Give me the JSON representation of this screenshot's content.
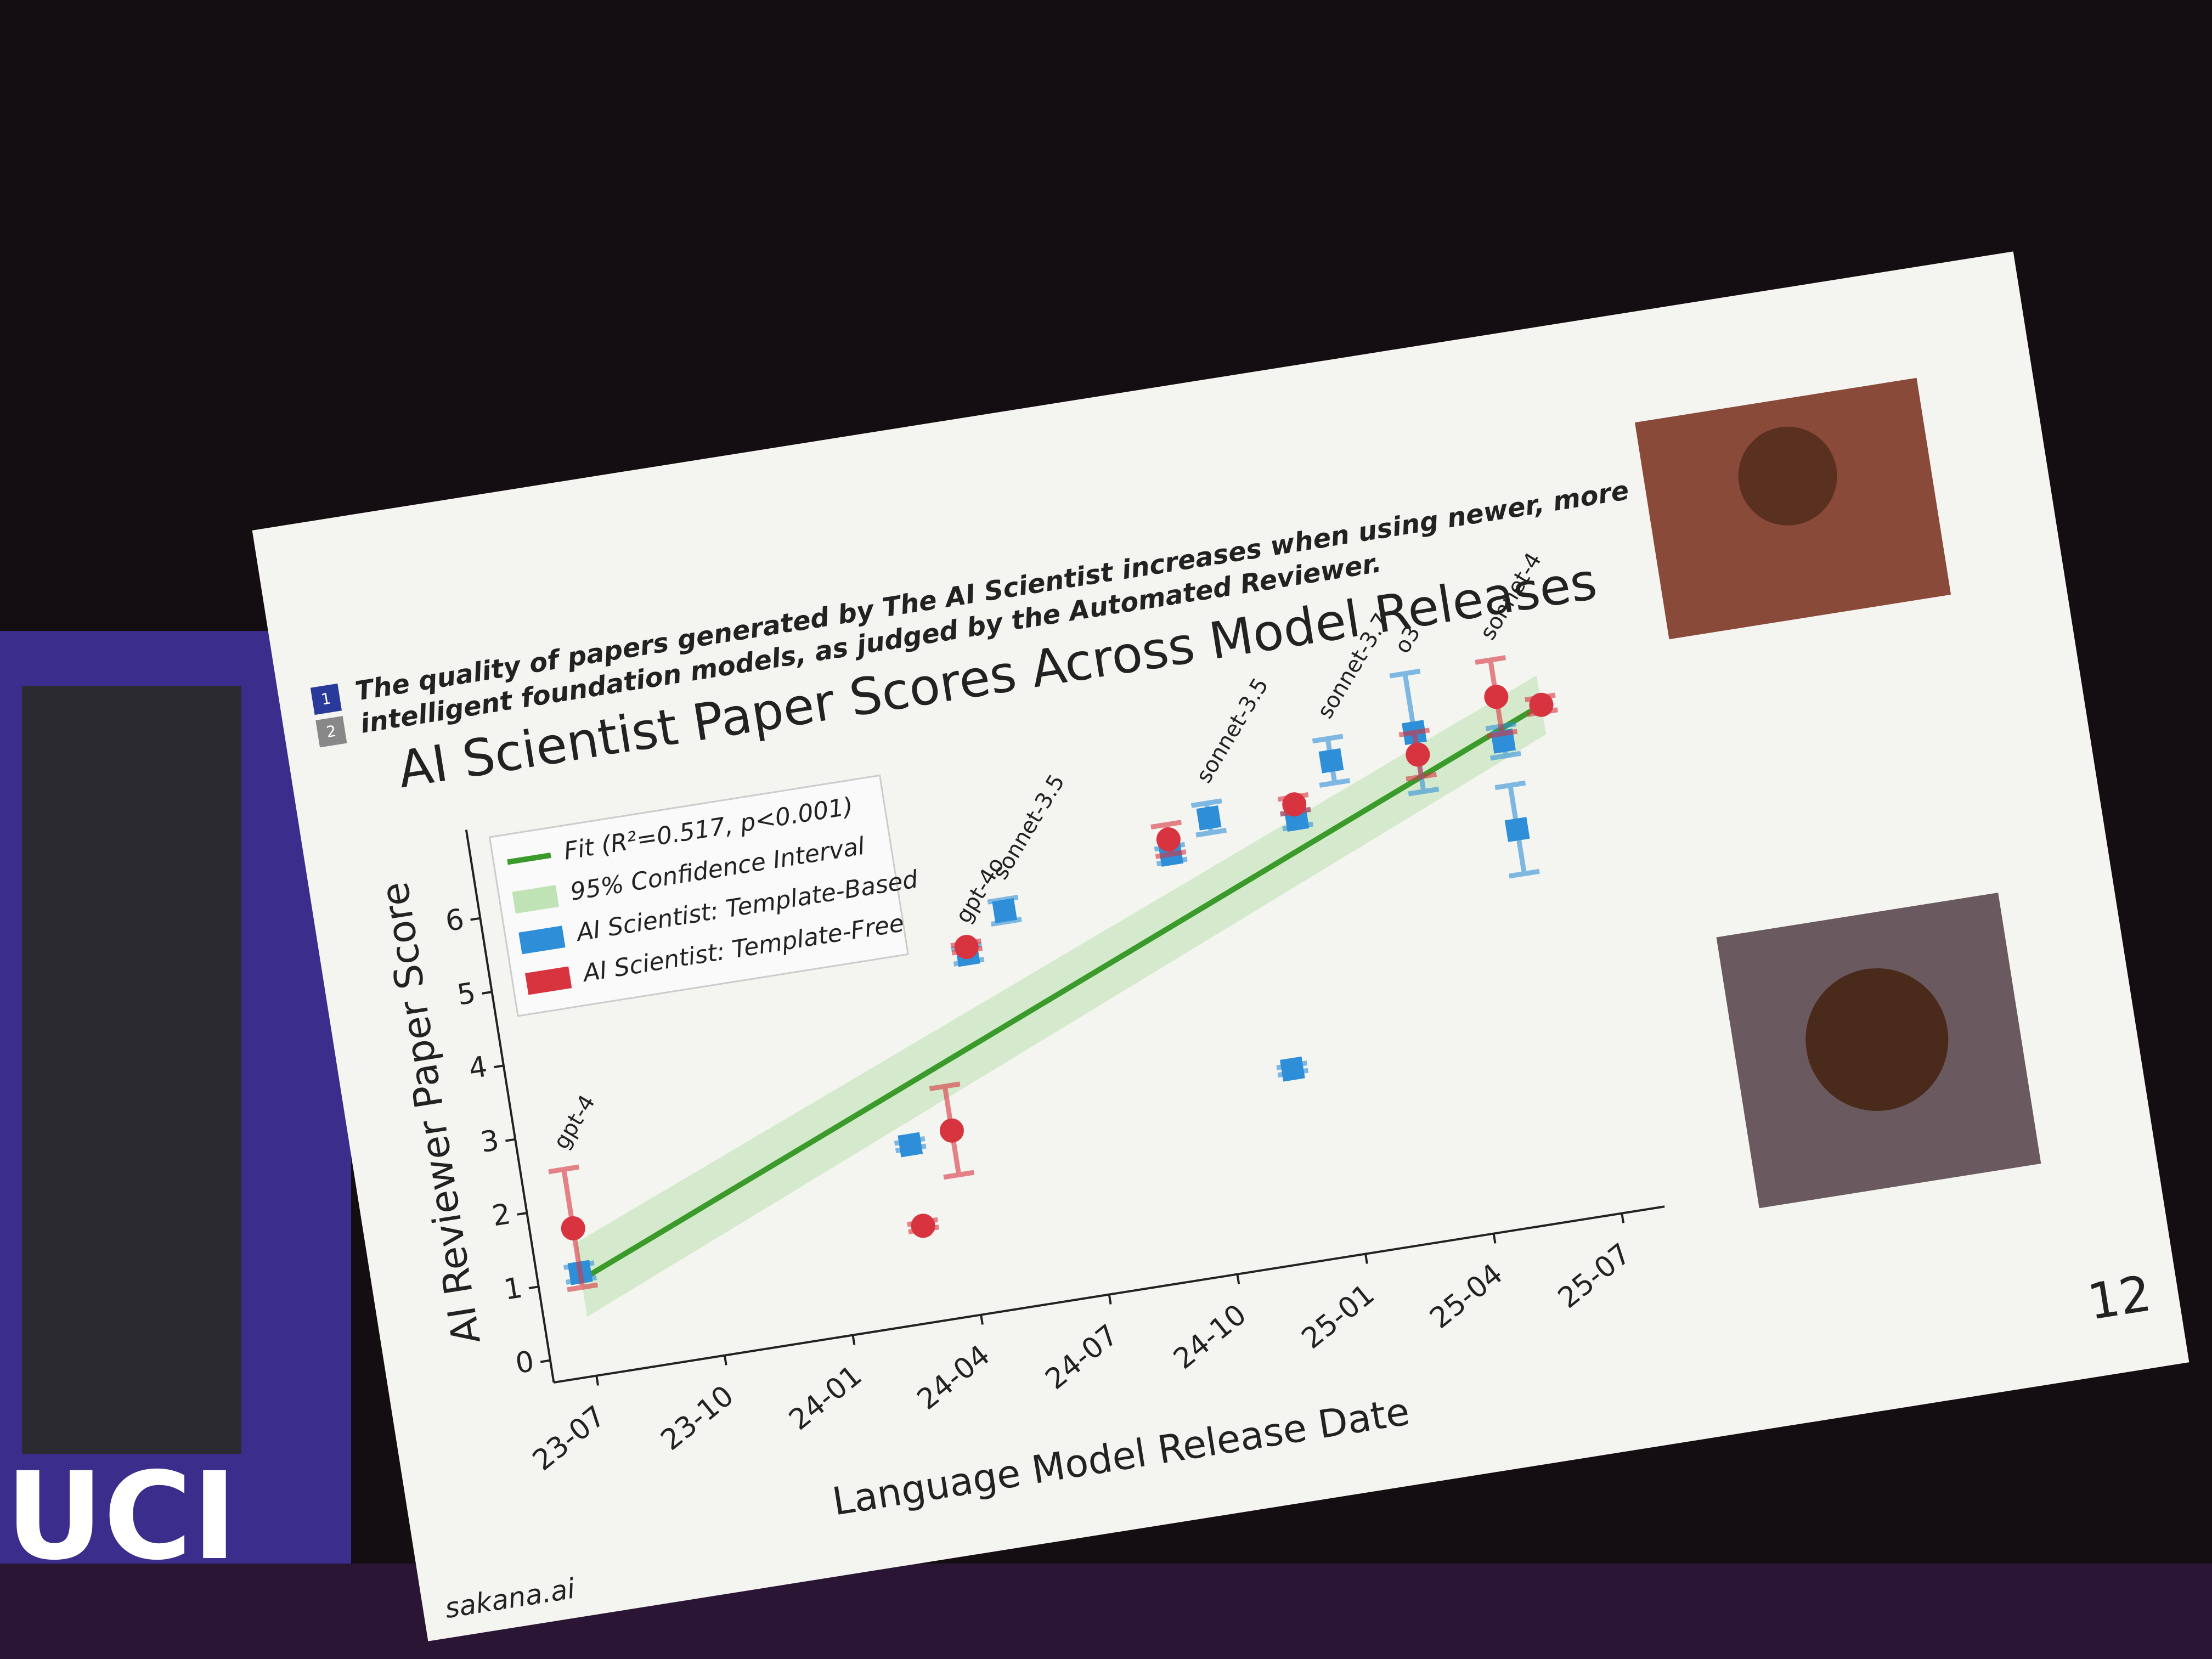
{
  "slide": {
    "header": "The quality of papers generated by The AI Scientist increases when using newer, more intelligent foundation models, as judged by the Automated Reviewer.",
    "nav": [
      "1",
      "2"
    ],
    "page_number": "12",
    "footer": "sakana.ai",
    "backdrop_text": "UCI"
  },
  "chart_data": {
    "type": "scatter",
    "title": "AI Scientist Paper Scores Across Model Releases",
    "x_label": "Language Model Release Date",
    "y_label": "AI Reviewer Paper Score",
    "xlim": [
      "2023-06",
      "2025-08"
    ],
    "xticks": [
      {
        "value": "2023-07",
        "label": "23-07"
      },
      {
        "value": "2023-10",
        "label": "23-10"
      },
      {
        "value": "2024-01",
        "label": "24-01"
      },
      {
        "value": "2024-04",
        "label": "24-04"
      },
      {
        "value": "2024-07",
        "label": "24-07"
      },
      {
        "value": "2024-10",
        "label": "24-10"
      },
      {
        "value": "2025-01",
        "label": "25-01"
      },
      {
        "value": "2025-04",
        "label": "25-04"
      },
      {
        "value": "2025-07",
        "label": "25-07"
      }
    ],
    "ylim": [
      -0.3,
      7.2
    ],
    "yticks": [
      0,
      1,
      2,
      3,
      4,
      5,
      6
    ],
    "fit": {
      "name": "Fit (R²=0.517, p<0.001)",
      "color": "#3a9a2a",
      "x": [
        "2023-07",
        "2025-07"
      ],
      "values": [
        1.0,
        6.6
      ]
    },
    "ci": {
      "name": "95% Confidence Interval",
      "color": "#bfe3b4",
      "x": [
        "2023-07",
        "2025-07"
      ],
      "lower": [
        0.5,
        6.2
      ],
      "upper": [
        1.5,
        7.0
      ]
    },
    "series": [
      {
        "name": "AI Scientist: Template-Based",
        "color": "#2e8fd8",
        "marker": "square",
        "x": [
          "2023-07",
          "2024-03",
          "2024-05",
          "2024-06",
          "2024-10",
          "2024-11",
          "2024-12",
          "2025-01",
          "2025-02",
          "2025-04",
          "2025-06",
          "2025-06"
        ],
        "values": [
          1.1,
          2.1,
          4.5,
          5.0,
          5.4,
          5.8,
          2.3,
          5.6,
          6.3,
          6.5,
          6.2,
          5.0
        ],
        "errors": [
          0.1,
          0.05,
          0.1,
          0.15,
          0.1,
          0.2,
          0.05,
          0.1,
          0.3,
          0.8,
          0.2,
          0.6
        ]
      },
      {
        "name": "AI Scientist: Template-Free",
        "color": "#d8343f",
        "marker": "circle",
        "x": [
          "2023-07",
          "2024-03",
          "2024-04",
          "2024-05",
          "2024-10",
          "2025-01",
          "2025-04",
          "2025-06",
          "2025-07"
        ],
        "values": [
          1.7,
          1.0,
          2.2,
          4.6,
          5.6,
          5.8,
          6.2,
          6.8,
          6.6
        ],
        "errors": [
          0.8,
          0.05,
          0.6,
          0.05,
          0.2,
          0.1,
          0.3,
          0.5,
          0.1
        ]
      }
    ],
    "annotations": [
      {
        "text": "gpt-4",
        "x": "2023-07"
      },
      {
        "text": "gpt-4o",
        "x": "2024-05"
      },
      {
        "text": "sonnet-3.5",
        "x": "2024-06"
      },
      {
        "text": "sonnet-3.5",
        "x": "2024-11"
      },
      {
        "text": "sonnet-3.7",
        "x": "2025-02"
      },
      {
        "text": "o3",
        "x": "2025-04"
      },
      {
        "text": "sonnet-4",
        "x": "2025-06"
      }
    ],
    "legend": "upper left"
  }
}
